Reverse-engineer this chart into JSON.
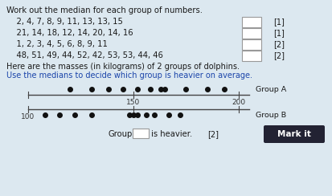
{
  "title": "Work out the median for each group of numbers.",
  "lines": [
    {
      "text": "    2, 4, 7, 8, 9, 11, 13, 13, 15",
      "mark": "[1]"
    },
    {
      "text": "    21, 14, 18, 12, 14, 20, 14, 16",
      "mark": "[1]"
    },
    {
      "text": "    1, 2, 3, 4, 5, 6, 8, 9, 11",
      "mark": "[2]"
    },
    {
      "text": "    48, 51, 49, 44, 52, 42, 53, 53, 44, 46",
      "mark": "[2]"
    }
  ],
  "dolphin_intro1": "Here are the masses (in kilograms) of 2 groups of dolphins.",
  "dolphin_intro2": "Use the medians to decide which group is heavier on average.",
  "group_a_dots": [
    120,
    130,
    138,
    145,
    152,
    158,
    163,
    165,
    175,
    185,
    193
  ],
  "group_b_dots": [
    108,
    115,
    122,
    130,
    148,
    150,
    152,
    156,
    160,
    167,
    172
  ],
  "axis_min": 100,
  "axis_max": 205,
  "tick_100": 100,
  "tick_150": 150,
  "tick_200": 200,
  "group_a_label": "Group A",
  "group_b_label": "Group B",
  "bottom_text1": "Group",
  "bottom_text2": "is heavier.",
  "bottom_mark": "[2]",
  "mark_it_text": "Mark it",
  "mark_it_bg": "#222233",
  "bg_color": "#dce8f0",
  "text_color_dark": "#1a1a1a",
  "text_color_blue": "#1a44aa",
  "dot_color": "#111111",
  "line_color": "#444444",
  "box_fill": "#ffffff",
  "box_edge": "#999999"
}
